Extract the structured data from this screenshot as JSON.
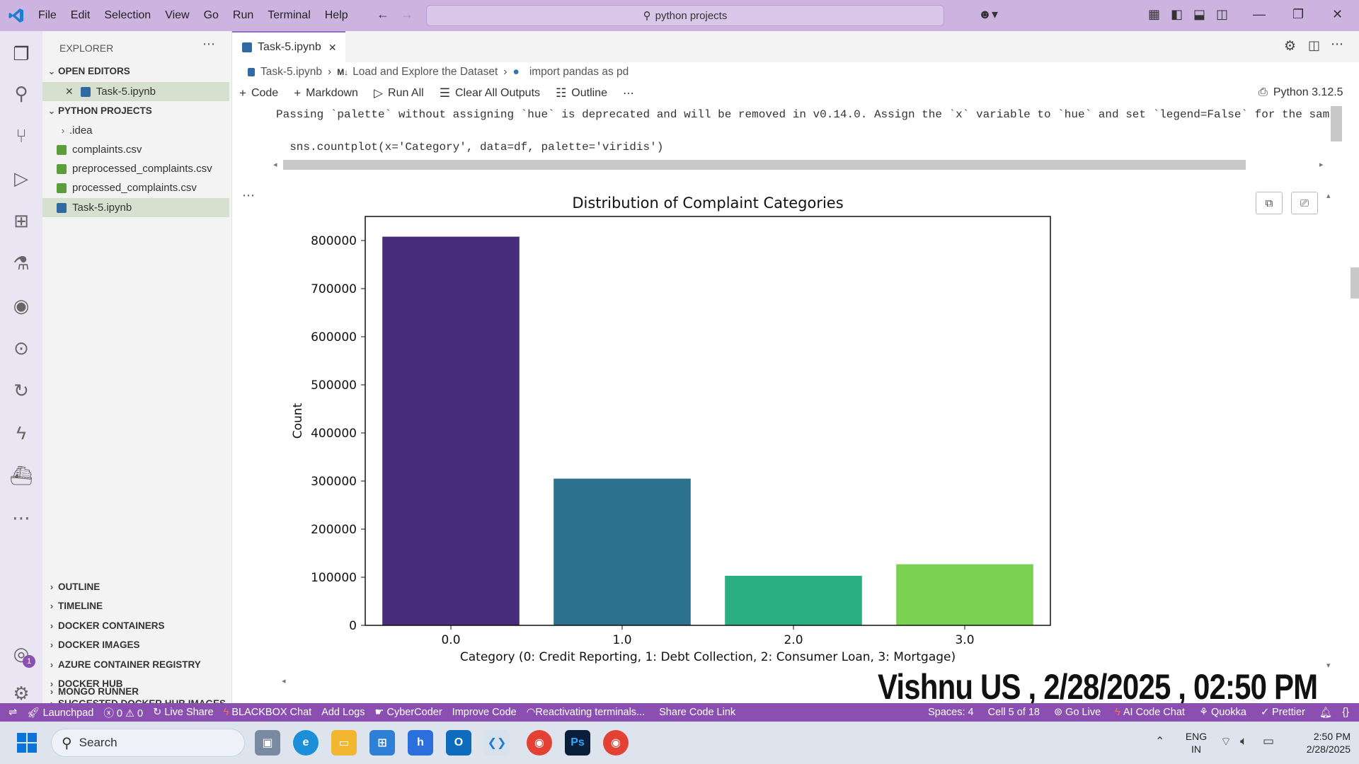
{
  "titlebar": {
    "menus": [
      "File",
      "Edit",
      "Selection",
      "View",
      "Go",
      "Run",
      "Terminal",
      "Help"
    ],
    "search_text": "python projects"
  },
  "sidebar": {
    "title": "EXPLORER",
    "open_editors_label": "OPEN EDITORS",
    "open_editor_file": "Task-5.ipynb",
    "project_label": "PYTHON PROJECTS",
    "files": [
      ".idea",
      "complaints.csv",
      "preprocessed_complaints.csv",
      "processed_complaints.csv",
      "Task-5.ipynb"
    ],
    "sections": [
      "OUTLINE",
      "TIMELINE",
      "DOCKER CONTAINERS",
      "DOCKER IMAGES",
      "AZURE CONTAINER REGISTRY",
      "DOCKER HUB",
      "SUGGESTED DOCKER HUB IMAGES",
      "MONGO RUNNER"
    ],
    "account_badge": "1"
  },
  "editor": {
    "tab_label": "Task-5.ipynb",
    "breadcrumb": [
      "Task-5.ipynb",
      "Load and Explore the Dataset",
      "import pandas as pd"
    ],
    "breadcrumb_md": "M↓",
    "toolbar": {
      "code": "Code",
      "markdown": "Markdown",
      "run_all": "Run All",
      "clear_outputs": "Clear All Outputs",
      "outline": "Outline",
      "kernel": "Python 3.12.5"
    },
    "output_line1": "Passing `palette` without assigning `hue` is deprecated and will be removed in v0.14.0. Assign the `x` variable to `hue` and set `legend=False` for the sam",
    "output_line2": "  sns.countplot(x='Category', data=df, palette='viridis')"
  },
  "chart_data": {
    "type": "bar",
    "title": "Distribution of Complaint Categories",
    "xlabel": "Category (0: Credit Reporting, 1: Debt Collection, 2: Consumer Loan, 3: Mortgage)",
    "ylabel": "Count",
    "categories": [
      "0.0",
      "1.0",
      "2.0",
      "3.0"
    ],
    "values": [
      808000,
      305000,
      103000,
      127000
    ],
    "colors": [
      "#472d7b",
      "#2c728e",
      "#28ae80",
      "#7ad151"
    ],
    "ylim": [
      0,
      850000
    ],
    "yticks": [
      0,
      100000,
      200000,
      300000,
      400000,
      500000,
      600000,
      700000,
      800000
    ],
    "grid": false
  },
  "statusbar": {
    "items_left": [
      "Launchpad",
      "0",
      "0",
      "Live Share",
      "BLACKBOX Chat",
      "Add Logs",
      "CyberCoder",
      "Improve Code",
      "Reactivating terminals...",
      "Share Code Link"
    ],
    "items_right": [
      "Spaces: 4",
      "Cell 5 of 18",
      "Go Live",
      "AI Code Chat",
      "Quokka",
      "Prettier"
    ]
  },
  "taskbar": {
    "search": "Search",
    "lang_top": "ENG",
    "lang_bottom": "IN",
    "time": "2:50 PM",
    "date": "2/28/2025"
  },
  "watermark": "Vishnu US , 2/28/2025 , 02:50 PM"
}
